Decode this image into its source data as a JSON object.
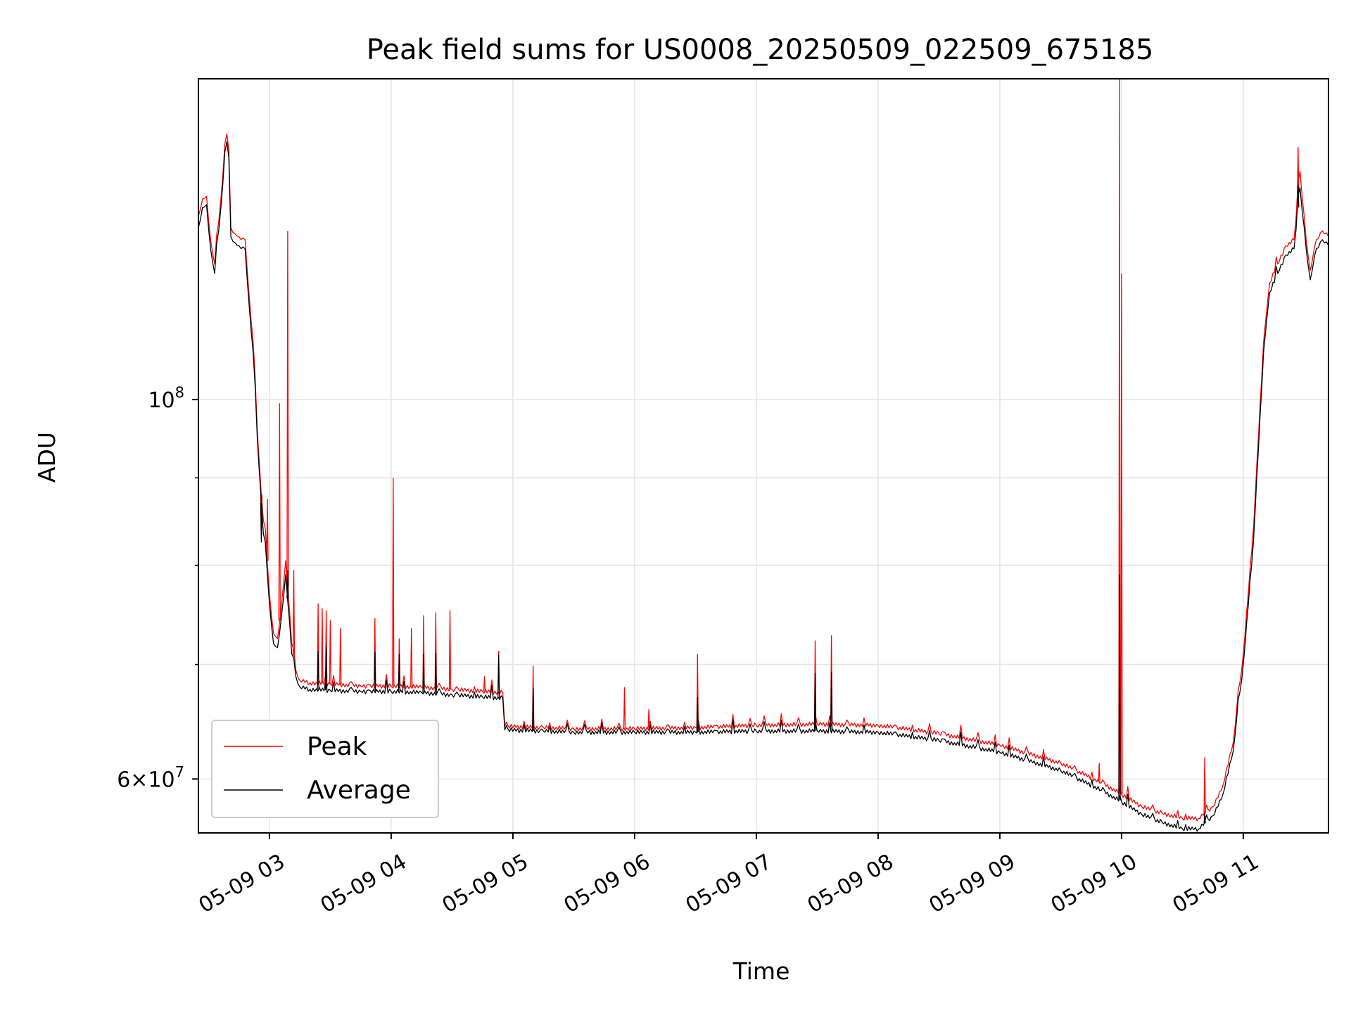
{
  "chart_data": {
    "type": "line",
    "title": "Peak field sums for US0008_20250509_022509_675185",
    "xlabel": "Time",
    "ylabel": "ADU",
    "yscale": "log",
    "xlim": [
      "2025-05-09 02:25",
      "2025-05-09 11:42"
    ],
    "ylim": [
      55800000,
      154000000
    ],
    "grid": true,
    "legend_position": "lower-left",
    "x_tick_labels": [
      "05-09 03",
      "05-09 04",
      "05-09 05",
      "05-09 06",
      "05-09 07",
      "05-09 08",
      "05-09 09",
      "05-09 10",
      "05-09 11"
    ],
    "y_major_ticks": [
      {
        "value": 100000000,
        "base": "10",
        "exp": "8",
        "mantissa": ""
      },
      {
        "value": 60000000,
        "base": "10",
        "exp": "7",
        "mantissa": "6"
      }
    ],
    "y_minor_ticks": [
      70000000,
      80000000,
      90000000
    ],
    "series": [
      {
        "name": "Peak",
        "color": "#ff0000",
        "points": [
          [
            "2025-05-09 02:25",
            128000000
          ],
          [
            "2025-05-09 02:27",
            131000000
          ],
          [
            "2025-05-09 02:29",
            131500000
          ],
          [
            "2025-05-09 02:31",
            124000000
          ],
          [
            "2025-05-09 02:33",
            120000000
          ],
          [
            "2025-05-09 02:35",
            127000000
          ],
          [
            "2025-05-09 02:37",
            135000000
          ],
          [
            "2025-05-09 02:38",
            141000000
          ],
          [
            "2025-05-09 02:39",
            143000000
          ],
          [
            "2025-05-09 02:40",
            140000000
          ],
          [
            "2025-05-09 02:41",
            126000000
          ],
          [
            "2025-05-09 02:43",
            125000000
          ],
          [
            "2025-05-09 02:45",
            124500000
          ],
          [
            "2025-05-09 02:48",
            124000000
          ],
          [
            "2025-05-09 02:50",
            115000000
          ],
          [
            "2025-05-09 02:52",
            108000000
          ],
          [
            "2025-05-09 02:54",
            96000000
          ],
          [
            "2025-05-09 02:56",
            88000000
          ],
          [
            "2025-05-09 02:57",
            85000000
          ],
          [
            "2025-05-09 02:58",
            84000000
          ],
          [
            "2025-05-09 03:00",
            77000000
          ],
          [
            "2025-05-09 03:02",
            73000000
          ],
          [
            "2025-05-09 03:04",
            72500000
          ],
          [
            "2025-05-09 03:06",
            76000000
          ],
          [
            "2025-05-09 03:08",
            80500000
          ],
          [
            "2025-05-09 03:10",
            75000000
          ],
          [
            "2025-05-09 03:11",
            72000000
          ],
          [
            "2025-05-09 03:13",
            69500000
          ],
          [
            "2025-05-09 03:15",
            68500000
          ],
          [
            "2025-05-09 03:20",
            68300000
          ],
          [
            "2025-05-09 03:30",
            68200000
          ],
          [
            "2025-05-09 03:45",
            68000000
          ],
          [
            "2025-05-09 04:00",
            68000000
          ],
          [
            "2025-05-09 04:15",
            67900000
          ],
          [
            "2025-05-09 04:30",
            67700000
          ],
          [
            "2025-05-09 04:45",
            67500000
          ],
          [
            "2025-05-09 04:55",
            67400000
          ],
          [
            "2025-05-09 04:56",
            64400000
          ],
          [
            "2025-05-09 05:15",
            64300000
          ],
          [
            "2025-05-09 05:30",
            64200000
          ],
          [
            "2025-05-09 06:00",
            64200000
          ],
          [
            "2025-05-09 06:30",
            64300000
          ],
          [
            "2025-05-09 07:00",
            64500000
          ],
          [
            "2025-05-09 07:30",
            64600000
          ],
          [
            "2025-05-09 08:00",
            64500000
          ],
          [
            "2025-05-09 08:30",
            63800000
          ],
          [
            "2025-05-09 09:00",
            62800000
          ],
          [
            "2025-05-09 09:30",
            61300000
          ],
          [
            "2025-05-09 09:50",
            59700000
          ],
          [
            "2025-05-09 10:00",
            58800000
          ],
          [
            "2025-05-09 10:10",
            57800000
          ],
          [
            "2025-05-09 10:20",
            57300000
          ],
          [
            "2025-05-09 10:30",
            56900000
          ],
          [
            "2025-05-09 10:38",
            56900000
          ],
          [
            "2025-05-09 10:45",
            57800000
          ],
          [
            "2025-05-09 10:50",
            59500000
          ],
          [
            "2025-05-09 10:55",
            63000000
          ],
          [
            "2025-05-09 11:00",
            71000000
          ],
          [
            "2025-05-09 11:05",
            84000000
          ],
          [
            "2025-05-09 11:10",
            108000000
          ],
          [
            "2025-05-09 11:13",
            117000000
          ],
          [
            "2025-05-09 11:17",
            120000000
          ],
          [
            "2025-05-09 11:21",
            123000000
          ],
          [
            "2025-05-09 11:25",
            124000000
          ],
          [
            "2025-05-09 11:28",
            136000000
          ],
          [
            "2025-05-09 11:31",
            124000000
          ],
          [
            "2025-05-09 11:33",
            119000000
          ],
          [
            "2025-05-09 11:36",
            124000000
          ],
          [
            "2025-05-09 11:39",
            125500000
          ],
          [
            "2025-05-09 11:42",
            124500000
          ]
        ],
        "spikes": [
          [
            "2025-05-09 02:56",
            84500000
          ],
          [
            "2025-05-09 02:59",
            87500000
          ],
          [
            "2025-05-09 03:05",
            99500000
          ],
          [
            "2025-05-09 03:09",
            125500000
          ],
          [
            "2025-05-09 03:12",
            79500000
          ],
          [
            "2025-05-09 03:24",
            76000000
          ],
          [
            "2025-05-09 03:26",
            75500000
          ],
          [
            "2025-05-09 03:28",
            75300000
          ],
          [
            "2025-05-09 03:30",
            74300000
          ],
          [
            "2025-05-09 03:35",
            73500000
          ],
          [
            "2025-05-09 03:52",
            74500000
          ],
          [
            "2025-05-09 04:01",
            90000000
          ],
          [
            "2025-05-09 04:04",
            72500000
          ],
          [
            "2025-05-09 04:10",
            73500000
          ],
          [
            "2025-05-09 04:16",
            74800000
          ],
          [
            "2025-05-09 04:22",
            75100000
          ],
          [
            "2025-05-09 04:29",
            75300000
          ],
          [
            "2025-05-09 04:46",
            68900000
          ],
          [
            "2025-05-09 04:53",
            71300000
          ],
          [
            "2025-05-09 05:10",
            69900000
          ],
          [
            "2025-05-09 05:55",
            67900000
          ],
          [
            "2025-05-09 06:07",
            65900000
          ],
          [
            "2025-05-09 06:31",
            71000000
          ],
          [
            "2025-05-09 07:29",
            72300000
          ],
          [
            "2025-05-09 07:37",
            72800000
          ],
          [
            "2025-05-09 09:49",
            61300000
          ],
          [
            "2025-05-09 09:59",
            154000000
          ],
          [
            "2025-05-09 10:00",
            118500000
          ],
          [
            "2025-05-09 10:41",
            61800000
          ],
          [
            "2025-05-09 11:27",
            140500000
          ]
        ]
      },
      {
        "name": "Average",
        "color": "#000000",
        "points": [
          [
            "2025-05-09 02:25",
            126000000
          ],
          [
            "2025-05-09 02:27",
            129500000
          ],
          [
            "2025-05-09 02:29",
            130000000
          ],
          [
            "2025-05-09 02:31",
            122500000
          ],
          [
            "2025-05-09 02:33",
            118500000
          ],
          [
            "2025-05-09 02:35",
            125500000
          ],
          [
            "2025-05-09 02:37",
            133500000
          ],
          [
            "2025-05-09 02:38",
            139500000
          ],
          [
            "2025-05-09 02:39",
            141500000
          ],
          [
            "2025-05-09 02:40",
            138500000
          ],
          [
            "2025-05-09 02:41",
            124500000
          ],
          [
            "2025-05-09 02:43",
            123500000
          ],
          [
            "2025-05-09 02:45",
            123000000
          ],
          [
            "2025-05-09 02:48",
            122500000
          ],
          [
            "2025-05-09 02:50",
            113500000
          ],
          [
            "2025-05-09 02:52",
            106500000
          ],
          [
            "2025-05-09 02:54",
            95000000
          ],
          [
            "2025-05-09 02:56",
            87000000
          ],
          [
            "2025-05-09 02:57",
            83500000
          ],
          [
            "2025-05-09 02:58",
            82500000
          ],
          [
            "2025-05-09 03:00",
            76000000
          ],
          [
            "2025-05-09 03:02",
            72000000
          ],
          [
            "2025-05-09 03:04",
            71600000
          ],
          [
            "2025-05-09 03:06",
            74800000
          ],
          [
            "2025-05-09 03:08",
            79000000
          ],
          [
            "2025-05-09 03:10",
            74000000
          ],
          [
            "2025-05-09 03:11",
            71000000
          ],
          [
            "2025-05-09 03:13",
            68900000
          ],
          [
            "2025-05-09 03:15",
            67900000
          ],
          [
            "2025-05-09 03:20",
            67700000
          ],
          [
            "2025-05-09 03:30",
            67600000
          ],
          [
            "2025-05-09 03:45",
            67500000
          ],
          [
            "2025-05-09 04:00",
            67500000
          ],
          [
            "2025-05-09 04:15",
            67400000
          ],
          [
            "2025-05-09 04:30",
            67200000
          ],
          [
            "2025-05-09 04:45",
            67000000
          ],
          [
            "2025-05-09 04:55",
            66900000
          ],
          [
            "2025-05-09 04:56",
            64100000
          ],
          [
            "2025-05-09 05:15",
            64000000
          ],
          [
            "2025-05-09 05:30",
            63900000
          ],
          [
            "2025-05-09 06:00",
            63900000
          ],
          [
            "2025-05-09 06:30",
            63900000
          ],
          [
            "2025-05-09 07:00",
            64000000
          ],
          [
            "2025-05-09 07:30",
            64000000
          ],
          [
            "2025-05-09 08:00",
            63900000
          ],
          [
            "2025-05-09 08:30",
            63200000
          ],
          [
            "2025-05-09 09:00",
            62200000
          ],
          [
            "2025-05-09 09:30",
            60700000
          ],
          [
            "2025-05-09 09:50",
            59100000
          ],
          [
            "2025-05-09 10:00",
            58200000
          ],
          [
            "2025-05-09 10:10",
            57200000
          ],
          [
            "2025-05-09 10:20",
            56600000
          ],
          [
            "2025-05-09 10:30",
            56100000
          ],
          [
            "2025-05-09 10:38",
            56100000
          ],
          [
            "2025-05-09 10:45",
            57100000
          ],
          [
            "2025-05-09 10:50",
            58800000
          ],
          [
            "2025-05-09 10:55",
            62300000
          ],
          [
            "2025-05-09 11:00",
            70000000
          ],
          [
            "2025-05-09 11:05",
            82500000
          ],
          [
            "2025-05-09 11:10",
            106500000
          ],
          [
            "2025-05-09 11:13",
            115500000
          ],
          [
            "2025-05-09 11:17",
            118500000
          ],
          [
            "2025-05-09 11:21",
            121500000
          ],
          [
            "2025-05-09 11:25",
            122500000
          ],
          [
            "2025-05-09 11:28",
            133000000
          ],
          [
            "2025-05-09 11:31",
            122500000
          ],
          [
            "2025-05-09 11:33",
            117500000
          ],
          [
            "2025-05-09 11:36",
            122500000
          ],
          [
            "2025-05-09 11:39",
            124000000
          ],
          [
            "2025-05-09 11:42",
            123000000
          ]
        ],
        "spikes": [
          [
            "2025-05-09 02:56",
            82500000
          ],
          [
            "2025-05-09 03:09",
            79500000
          ],
          [
            "2025-05-09 03:24",
            71300000
          ],
          [
            "2025-05-09 03:28",
            71800000
          ],
          [
            "2025-05-09 03:52",
            71200000
          ],
          [
            "2025-05-09 04:04",
            71000000
          ],
          [
            "2025-05-09 04:16",
            71000000
          ],
          [
            "2025-05-09 04:22",
            71100000
          ],
          [
            "2025-05-09 04:53",
            70900000
          ],
          [
            "2025-05-09 05:10",
            67800000
          ],
          [
            "2025-05-09 06:31",
            67000000
          ],
          [
            "2025-05-09 07:29",
            69200000
          ],
          [
            "2025-05-09 07:37",
            69300000
          ],
          [
            "2025-05-09 09:59",
            79000000
          ],
          [
            "2025-05-09 10:41",
            57300000
          ],
          [
            "2025-05-09 11:27",
            133500000
          ]
        ]
      }
    ]
  }
}
